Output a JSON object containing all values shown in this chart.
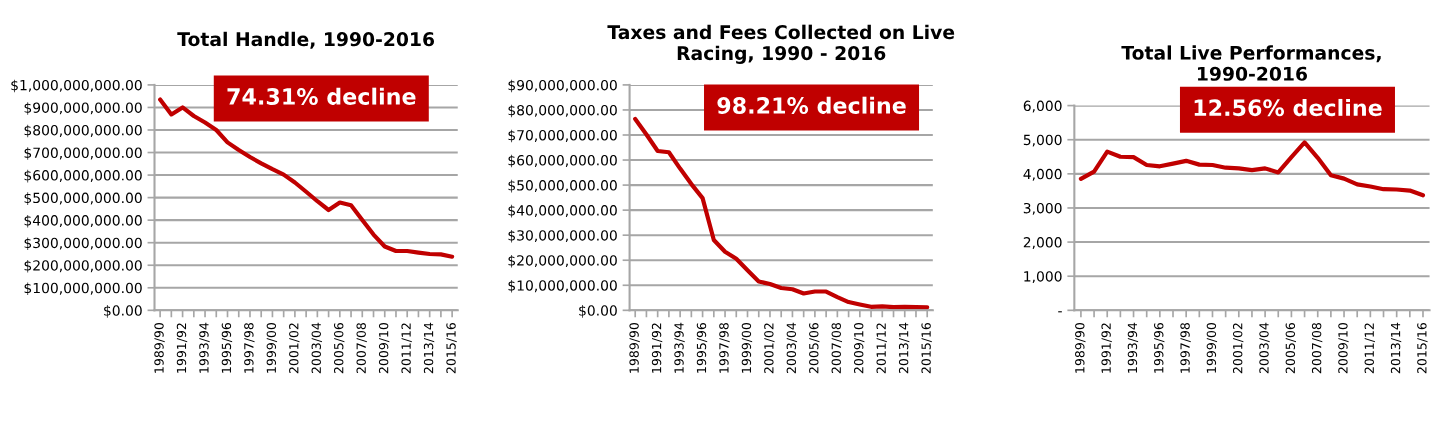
{
  "chart_data": [
    {
      "type": "line",
      "title": "Total Handle, 1990-2016",
      "categories": [
        "1989/90",
        null,
        "1991/92",
        null,
        "1993/94",
        null,
        "1995/96",
        null,
        "1997/98",
        null,
        "1999/00",
        null,
        "2001/02",
        null,
        "2003/04",
        null,
        "2005/06",
        null,
        "2007/08",
        null,
        "2009/10",
        null,
        "2011/12",
        null,
        "2013/14",
        null,
        "2015/16"
      ],
      "series": [
        {
          "color": "#c00000",
          "values": [
            935000000,
            869000000,
            900000000,
            862000000,
            833000000,
            800000000,
            745000000,
            711000000,
            680000000,
            652000000,
            626000000,
            602000000,
            567000000,
            526000000,
            484000000,
            445000000,
            478000000,
            466000000,
            401000000,
            336000000,
            283000000,
            263000000,
            263000000,
            256000000,
            250000000,
            248000000,
            238000000
          ]
        }
      ],
      "ylim": [
        0,
        1000000000
      ],
      "yticks": [
        {
          "value": 0,
          "label": "$0.00"
        },
        {
          "value": 100000000,
          "label": "$100,000,000.00"
        },
        {
          "value": 200000000,
          "label": "$200,000,000.00"
        },
        {
          "value": 300000000,
          "label": "$300,000,000.00"
        },
        {
          "value": 400000000,
          "label": "$400,000,000.00"
        },
        {
          "value": 500000000,
          "label": "$500,000,000.00"
        },
        {
          "value": 600000000,
          "label": "$600,000,000.00"
        },
        {
          "value": 700000000,
          "label": "$700,000,000.00"
        },
        {
          "value": 800000000,
          "label": "$800,000,000.00"
        },
        {
          "value": 900000000,
          "label": "$900,000,000.00"
        },
        {
          "value": 1000000000,
          "label": "$1,000,000,000.00"
        }
      ],
      "grid": "y",
      "legend": false,
      "annotations": [
        "74.31% decline"
      ]
    },
    {
      "type": "line",
      "title": "Taxes and Fees Collected on Live\nRacing, 1990 - 2016",
      "categories": [
        "1989/90",
        null,
        "1991/92",
        null,
        "1993/94",
        null,
        "1995/96",
        null,
        "1997/98",
        null,
        "1999/00",
        null,
        "2001/02",
        null,
        "2003/04",
        null,
        "2005/06",
        null,
        "2007/08",
        null,
        "2009/10",
        null,
        "2011/12",
        null,
        "2013/14",
        null,
        "2015/16"
      ],
      "series": [
        {
          "color": "#c00000",
          "values": [
            76400000,
            70200000,
            63600000,
            63100000,
            56600000,
            50400000,
            44800000,
            28100000,
            23400000,
            20600000,
            16000000,
            11500000,
            10500000,
            8900000,
            8400000,
            6700000,
            7500000,
            7500000,
            5300000,
            3300000,
            2300000,
            1400000,
            1600000,
            1300000,
            1400000,
            1300000,
            1200000
          ]
        }
      ],
      "ylim": [
        0,
        90000000
      ],
      "yticks": [
        {
          "value": 0,
          "label": "$0.00"
        },
        {
          "value": 10000000,
          "label": "$10,000,000.00"
        },
        {
          "value": 20000000,
          "label": "$20,000,000.00"
        },
        {
          "value": 30000000,
          "label": "$30,000,000.00"
        },
        {
          "value": 40000000,
          "label": "$40,000,000.00"
        },
        {
          "value": 50000000,
          "label": "$50,000,000.00"
        },
        {
          "value": 60000000,
          "label": "$60,000,000.00"
        },
        {
          "value": 70000000,
          "label": "$70,000,000.00"
        },
        {
          "value": 80000000,
          "label": "$80,000,000.00"
        },
        {
          "value": 90000000,
          "label": "$90,000,000.00"
        }
      ],
      "grid": "y",
      "legend": false,
      "annotations": [
        "98.21% decline"
      ]
    },
    {
      "type": "line",
      "title": "Total Live Performances,\n1990-2016",
      "categories": [
        "1989/90",
        null,
        "1991/92",
        null,
        "1993/94",
        null,
        "1995/96",
        null,
        "1997/98",
        null,
        "1999/00",
        null,
        "2001/02",
        null,
        "2003/04",
        null,
        "2005/06",
        null,
        "2007/08",
        null,
        "2009/10",
        null,
        "2011/12",
        null,
        "2013/14",
        null,
        "2015/16"
      ],
      "series": [
        {
          "color": "#c00000",
          "values": [
            3854,
            4065,
            4650,
            4500,
            4490,
            4260,
            4220,
            4300,
            4380,
            4270,
            4260,
            4180,
            4160,
            4110,
            4160,
            4040,
            4490,
            4920,
            4470,
            3960,
            3860,
            3690,
            3630,
            3550,
            3540,
            3510,
            3370
          ]
        }
      ],
      "ylim": [
        0,
        6000
      ],
      "yticks": [
        {
          "value": 0,
          "label": "-"
        },
        {
          "value": 1000,
          "label": "1,000"
        },
        {
          "value": 2000,
          "label": "2,000"
        },
        {
          "value": 3000,
          "label": "3,000"
        },
        {
          "value": 4000,
          "label": "4,000"
        },
        {
          "value": 5000,
          "label": "5,000"
        },
        {
          "value": 6000,
          "label": "6,000"
        }
      ],
      "grid": "y",
      "legend": false,
      "annotations": [
        "12.56% decline"
      ]
    }
  ]
}
